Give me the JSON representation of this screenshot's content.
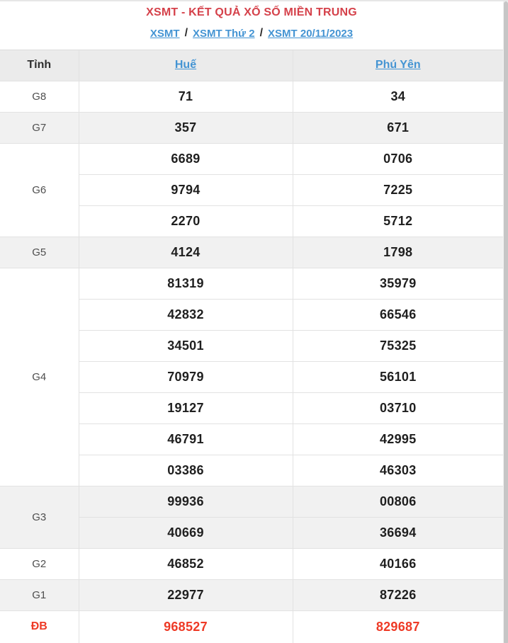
{
  "page": {
    "title": "XSMT - KẾT QUẢ XỔ SỐ MIỀN TRUNG",
    "breadcrumb": {
      "separator": "/",
      "items": [
        "XSMT",
        "XSMT Thứ 2",
        "XSMT 20/11/2023"
      ]
    }
  },
  "table": {
    "header": {
      "province_label": "Tỉnh",
      "columns": [
        "Huế",
        "Phú Yên"
      ]
    },
    "rows": [
      {
        "key": "g8",
        "prize": "G8",
        "shaded": false,
        "special": false,
        "values": [
          [
            "71"
          ],
          [
            "34"
          ]
        ]
      },
      {
        "key": "g7",
        "prize": "G7",
        "shaded": true,
        "special": false,
        "values": [
          [
            "357"
          ],
          [
            "671"
          ]
        ]
      },
      {
        "key": "g6",
        "prize": "G6",
        "shaded": false,
        "special": false,
        "values": [
          [
            "6689",
            "9794",
            "2270"
          ],
          [
            "0706",
            "7225",
            "5712"
          ]
        ]
      },
      {
        "key": "g5",
        "prize": "G5",
        "shaded": true,
        "special": false,
        "values": [
          [
            "4124"
          ],
          [
            "1798"
          ]
        ]
      },
      {
        "key": "g4",
        "prize": "G4",
        "shaded": false,
        "special": false,
        "values": [
          [
            "81319",
            "42832",
            "34501",
            "70979",
            "19127",
            "46791",
            "03386"
          ],
          [
            "35979",
            "66546",
            "75325",
            "56101",
            "03710",
            "42995",
            "46303"
          ]
        ]
      },
      {
        "key": "g3",
        "prize": "G3",
        "shaded": true,
        "special": false,
        "values": [
          [
            "99936",
            "40669"
          ],
          [
            "00806",
            "36694"
          ]
        ]
      },
      {
        "key": "g2",
        "prize": "G2",
        "shaded": false,
        "special": false,
        "values": [
          [
            "46852"
          ],
          [
            "40166"
          ]
        ]
      },
      {
        "key": "g1",
        "prize": "G1",
        "shaded": true,
        "special": false,
        "values": [
          [
            "22977"
          ],
          [
            "87226"
          ]
        ]
      },
      {
        "key": "db",
        "prize": "ĐB",
        "shaded": false,
        "special": true,
        "values": [
          [
            "968527"
          ],
          [
            "829687"
          ]
        ]
      }
    ]
  },
  "icons": {
    "scrollbar": "vertical-scrollbar"
  },
  "colors": {
    "title_red": "#d5414a",
    "special_red": "#ee3a26",
    "link_blue": "#4494d3",
    "header_bg": "#ebebeb",
    "shaded_row_bg": "#f1f1f1",
    "border": "#e2e2e2"
  }
}
